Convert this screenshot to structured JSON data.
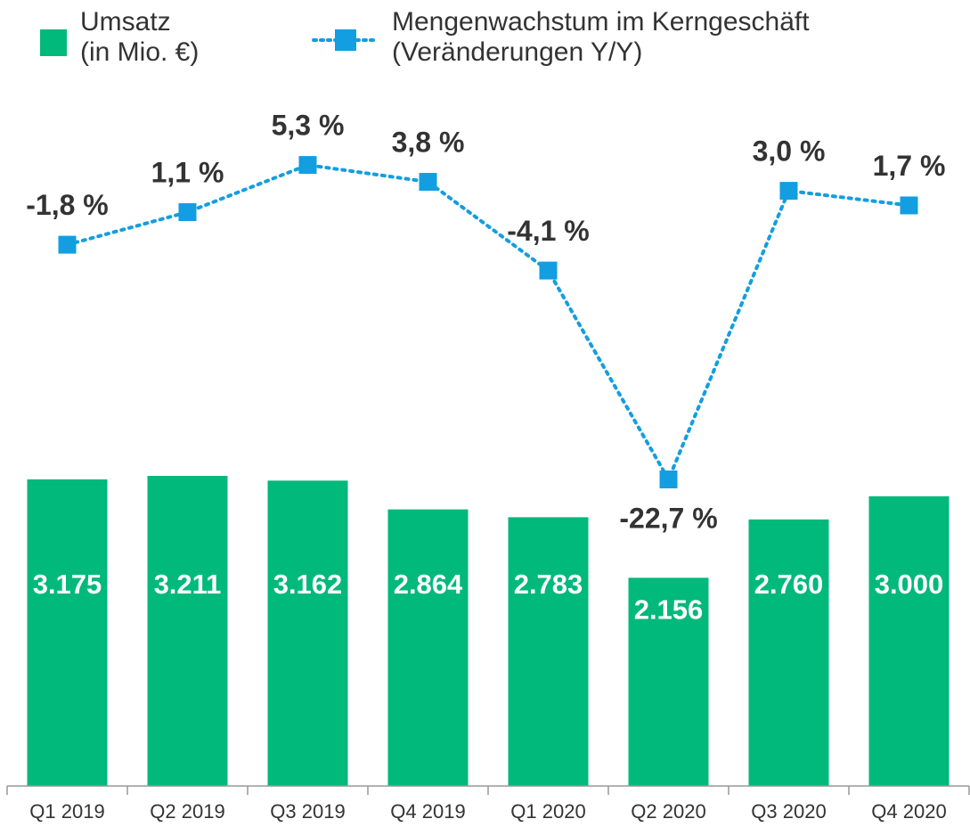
{
  "chart_data": {
    "type": "combo",
    "categories": [
      "Q1 2019",
      "Q2 2019",
      "Q3 2019",
      "Q4 2019",
      "Q1 2020",
      "Q2 2020",
      "Q3 2020",
      "Q4 2020"
    ],
    "series": [
      {
        "name": "Umsatz\n(in Mio. €)",
        "type": "bar",
        "color": "#00b97a",
        "values": [
          3175,
          3211,
          3162,
          2864,
          2783,
          2156,
          2760,
          3000
        ],
        "value_labels": [
          "3.175",
          "3.211",
          "3.162",
          "2.864",
          "2.783",
          "2.156",
          "2.760",
          "3.000"
        ]
      },
      {
        "name": "Mengenwachstum im Kerngeschäft\n(Veränderungen Y/Y)",
        "type": "line",
        "axis": "y2",
        "color": "#129ee0",
        "values": [
          -1.8,
          1.1,
          5.3,
          3.8,
          -4.1,
          -22.7,
          3.0,
          1.7
        ],
        "value_labels": [
          "-1,8 %",
          "1,1 %",
          "5,3 %",
          "3,8 %",
          "-4,1 %",
          "-22,7 %",
          "3,0 %",
          "1,7 %"
        ]
      }
    ],
    "ylim": [
      0,
      8000
    ],
    "y2lim": [
      -50,
      18.8
    ]
  }
}
